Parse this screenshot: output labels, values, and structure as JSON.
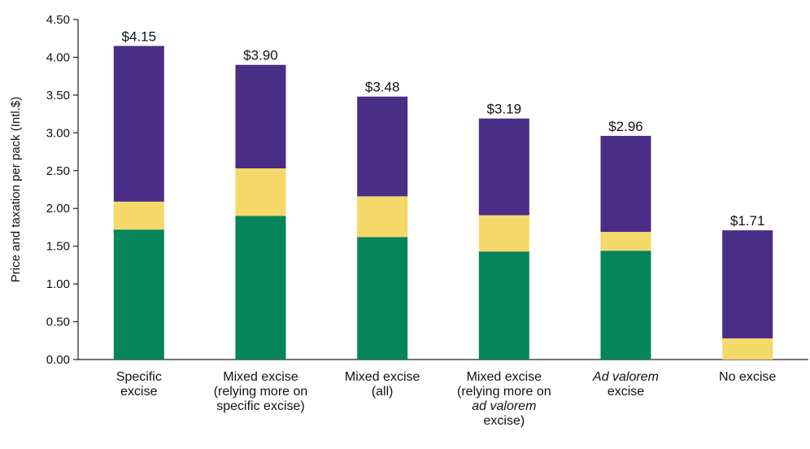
{
  "chart_data": {
    "type": "bar",
    "stacked": true,
    "title": "",
    "xlabel": "",
    "ylabel": "Price and taxation per pack (Intl.$)",
    "ylim": [
      0,
      4.5
    ],
    "yticks": [
      "0.00",
      "0.50",
      "1.00",
      "1.50",
      "2.00",
      "2.50",
      "3.00",
      "3.50",
      "4.00",
      "4.50"
    ],
    "grid": false,
    "legend": "none",
    "categories": [
      {
        "lines": [
          "Specific",
          "excise"
        ],
        "italic": [
          false,
          false
        ]
      },
      {
        "lines": [
          "Mixed excise",
          "(relying more on",
          "specific excise)"
        ],
        "italic": [
          false,
          false,
          false
        ]
      },
      {
        "lines": [
          "Mixed excise",
          "(all)"
        ],
        "italic": [
          false,
          false
        ]
      },
      {
        "lines": [
          "Mixed excise",
          "(relying more on",
          "ad valorem",
          "excise)"
        ],
        "italic": [
          false,
          false,
          true,
          false
        ]
      },
      {
        "lines": [
          "Ad valorem",
          "excise"
        ],
        "italic": [
          true,
          false
        ]
      },
      {
        "lines": [
          "No excise"
        ],
        "italic": [
          false
        ]
      }
    ],
    "series": [
      {
        "color": "#06855a",
        "values": [
          1.72,
          1.9,
          1.62,
          1.43,
          1.44,
          0.0
        ]
      },
      {
        "color": "#f6d96b",
        "values": [
          0.37,
          0.63,
          0.54,
          0.48,
          0.25,
          0.28
        ]
      },
      {
        "color": "#4a2d87",
        "values": [
          2.06,
          1.37,
          1.32,
          1.28,
          1.27,
          1.43
        ]
      }
    ],
    "totals": [
      4.15,
      3.9,
      3.48,
      3.19,
      2.96,
      1.71
    ],
    "total_labels": [
      "$4.15",
      "$3.90",
      "$3.48",
      "$3.19",
      "$2.96",
      "$1.71"
    ]
  }
}
